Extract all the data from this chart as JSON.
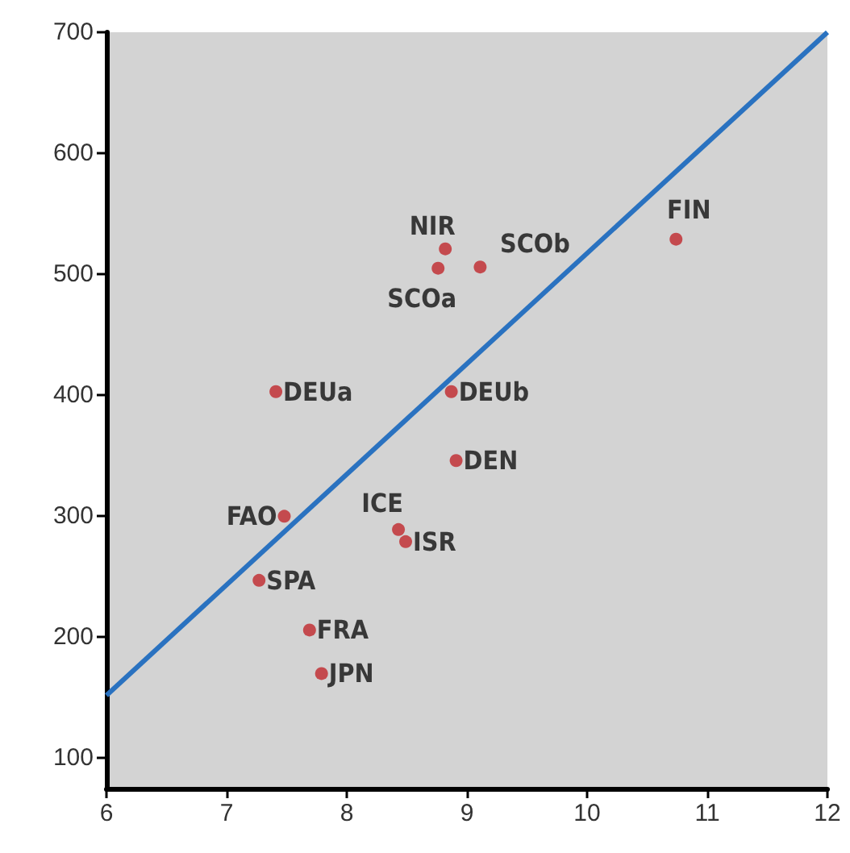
{
  "chart_data": {
    "type": "scatter",
    "xlim": [
      6,
      12
    ],
    "xticks": [
      6,
      7,
      8,
      9,
      10,
      11,
      12
    ],
    "ylim": [
      75,
      700
    ],
    "yticks": [
      100,
      200,
      300,
      400,
      500,
      600,
      700
    ],
    "grid": false,
    "series": [
      {
        "color": "#c0282d",
        "marker": "circle",
        "x": [
          8.82,
          9.11,
          8.76,
          10.74,
          7.41,
          8.87,
          8.91,
          7.48,
          8.43,
          8.49,
          7.27,
          7.69,
          7.79
        ],
        "values": [
          521,
          506,
          505,
          529,
          403,
          403,
          346,
          300,
          289,
          279,
          247,
          206,
          170
        ]
      },
      {
        "type": "line",
        "color": "#2a72c0",
        "marker": "none",
        "line_style": "solid",
        "x": [
          6,
          12
        ],
        "values": [
          152,
          700
        ]
      }
    ],
    "annotations": [
      {
        "text": "NIR",
        "x": 8.82,
        "y": 521
      },
      {
        "text": "SCOb",
        "x": 9.11,
        "y": 506
      },
      {
        "text": "SCOa",
        "x": 8.76,
        "y": 505
      },
      {
        "text": "FIN",
        "x": 10.74,
        "y": 529
      },
      {
        "text": "DEUa",
        "x": 7.41,
        "y": 403
      },
      {
        "text": "DEUb",
        "x": 8.87,
        "y": 403
      },
      {
        "text": "DEN",
        "x": 8.91,
        "y": 346
      },
      {
        "text": "FAO",
        "x": 7.48,
        "y": 300
      },
      {
        "text": "ICE",
        "x": 8.43,
        "y": 289
      },
      {
        "text": "ISR",
        "x": 8.49,
        "y": 279
      },
      {
        "text": "SPA",
        "x": 7.27,
        "y": 247
      },
      {
        "text": "FRA",
        "x": 7.69,
        "y": 206
      },
      {
        "text": "JPN",
        "x": 7.79,
        "y": 170
      }
    ]
  }
}
